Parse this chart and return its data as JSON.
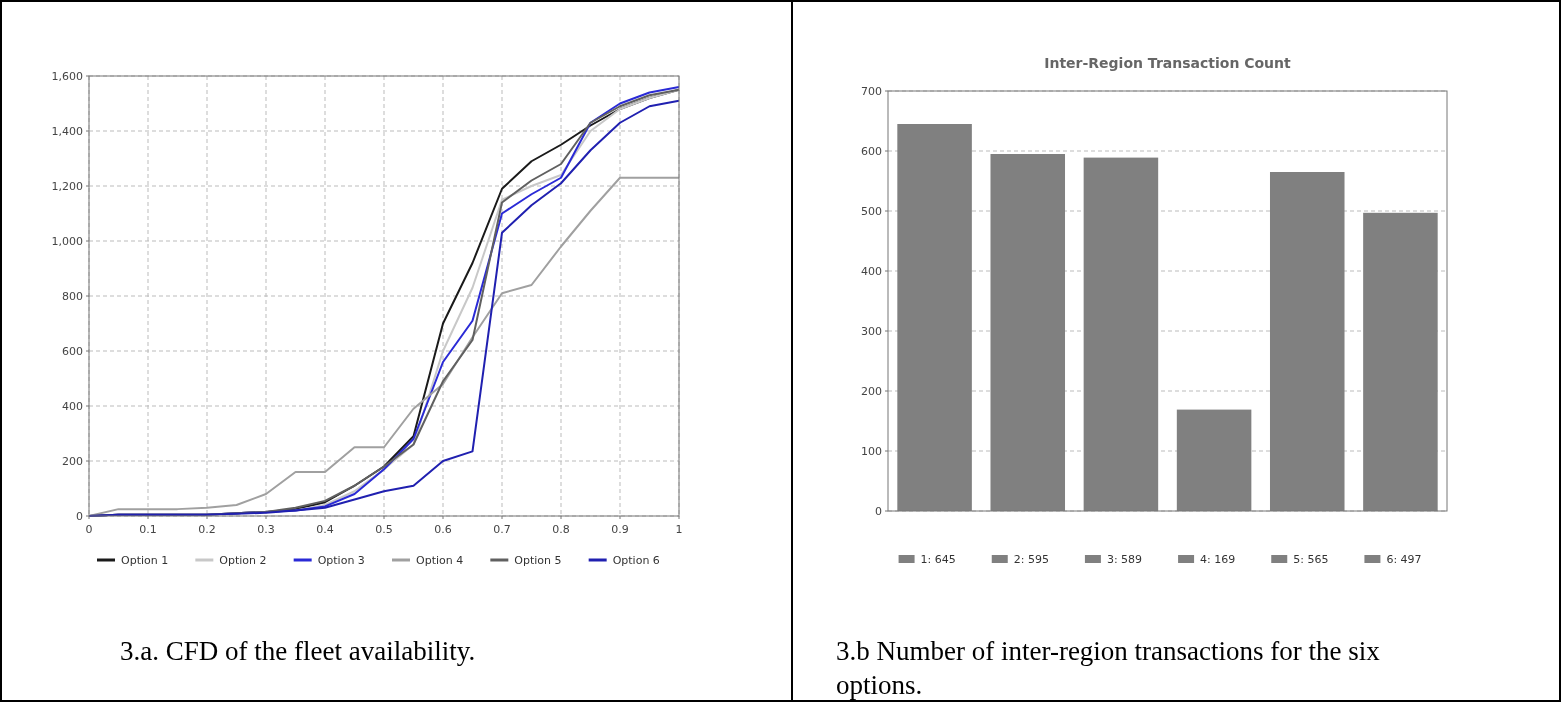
{
  "chart_data": [
    {
      "type": "line",
      "x": [
        0,
        0.05,
        0.1,
        0.15,
        0.2,
        0.25,
        0.3,
        0.35,
        0.4,
        0.45,
        0.5,
        0.55,
        0.6,
        0.65,
        0.7,
        0.75,
        0.8,
        0.85,
        0.9,
        0.95,
        1
      ],
      "series": [
        {
          "name": "Option 1",
          "color": "#1a1a1a",
          "values": [
            0,
            5,
            5,
            5,
            5,
            10,
            15,
            25,
            50,
            110,
            180,
            290,
            700,
            920,
            1190,
            1290,
            1350,
            1420,
            1480,
            1520,
            1550
          ]
        },
        {
          "name": "Option 2",
          "color": "#c8c8c8",
          "values": [
            0,
            5,
            5,
            5,
            5,
            10,
            15,
            20,
            40,
            90,
            170,
            260,
            600,
            830,
            1150,
            1200,
            1240,
            1400,
            1480,
            1520,
            1550
          ]
        },
        {
          "name": "Option 3",
          "color": "#2a2ad6",
          "values": [
            0,
            5,
            5,
            5,
            5,
            10,
            15,
            20,
            35,
            80,
            170,
            280,
            560,
            710,
            1100,
            1170,
            1230,
            1430,
            1500,
            1540,
            1560
          ]
        },
        {
          "name": "Option 4",
          "color": "#a0a0a0",
          "values": [
            0,
            25,
            25,
            25,
            30,
            40,
            80,
            160,
            160,
            250,
            250,
            390,
            480,
            650,
            810,
            840,
            980,
            1110,
            1230,
            1230,
            1230
          ]
        },
        {
          "name": "Option 5",
          "color": "#606060",
          "values": [
            0,
            5,
            5,
            5,
            5,
            10,
            15,
            30,
            55,
            110,
            180,
            260,
            490,
            640,
            1140,
            1220,
            1280,
            1430,
            1490,
            1530,
            1550
          ]
        },
        {
          "name": "Option 6",
          "color": "#2020b0",
          "values": [
            0,
            5,
            5,
            5,
            5,
            8,
            12,
            20,
            30,
            60,
            90,
            110,
            200,
            235,
            1030,
            1130,
            1210,
            1330,
            1430,
            1490,
            1510
          ]
        }
      ],
      "xlim": [
        0,
        1
      ],
      "xticks": [
        0,
        0.1,
        0.2,
        0.3,
        0.4,
        0.5,
        0.6,
        0.7,
        0.8,
        0.9,
        1
      ],
      "ylim": [
        0,
        1600
      ],
      "yticks": [
        0,
        200,
        400,
        600,
        800,
        {
          "value": 1000,
          "label": "1,000"
        },
        {
          "value": 1200,
          "label": "1,200"
        },
        {
          "value": 1400,
          "label": "1,400"
        },
        {
          "value": 1600,
          "label": "1,600"
        }
      ],
      "grid": true,
      "legend": "bottom",
      "line_style": "solid",
      "annotations": [
        "3.a. CFD of the fleet availability."
      ]
    },
    {
      "type": "bar",
      "title": "Inter-Region Transaction Count",
      "categories": [
        "1: 645",
        "2: 595",
        "3: 589",
        "4: 169",
        "5: 565",
        "6: 497"
      ],
      "values": [
        645,
        595,
        589,
        169,
        565,
        497
      ],
      "color": "#808080",
      "ylim": [
        0,
        700
      ],
      "yticks": [
        0,
        100,
        200,
        300,
        400,
        500,
        600,
        700
      ],
      "grid": "y",
      "annotations": [
        "3.b Number of inter-region transactions for the six options."
      ]
    }
  ]
}
